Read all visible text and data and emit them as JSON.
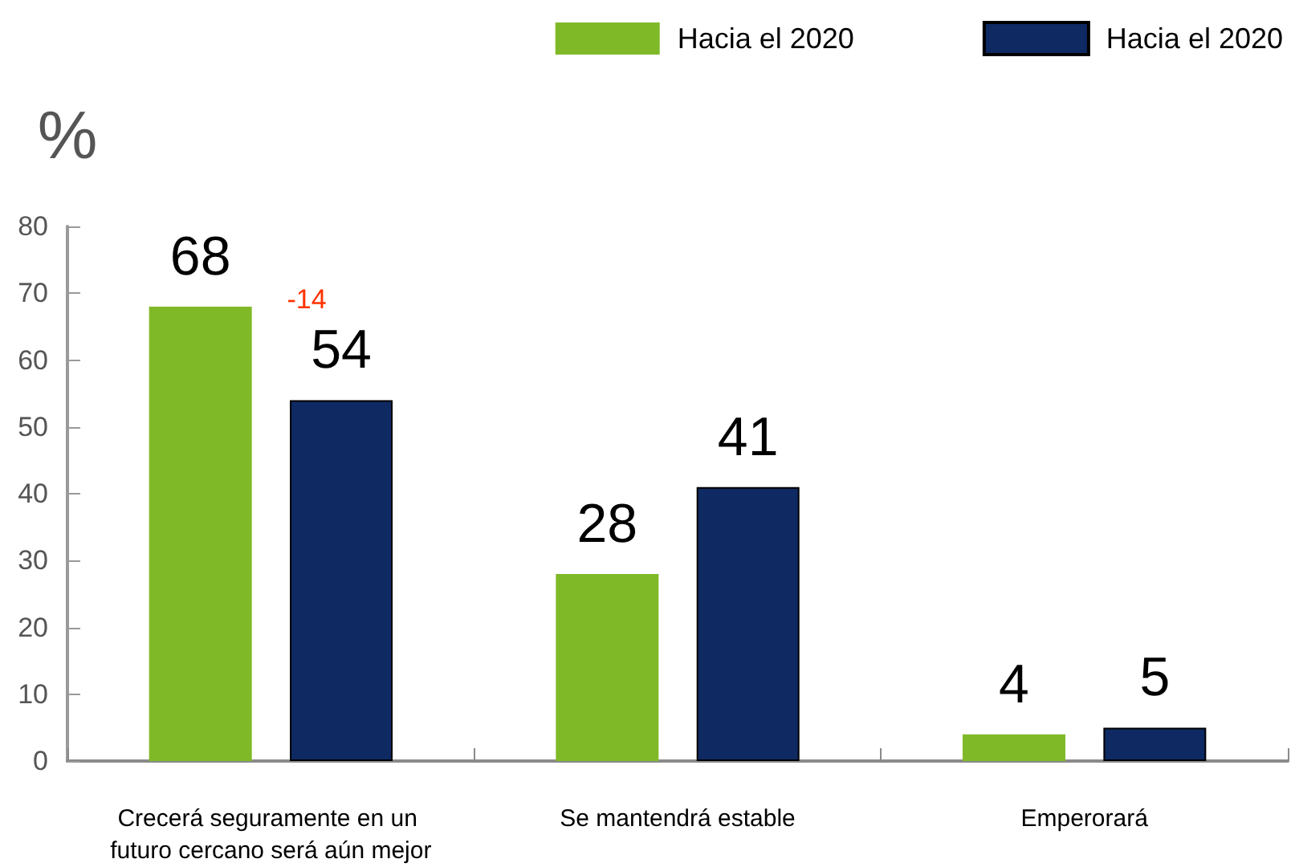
{
  "chart_data": {
    "type": "bar",
    "ylabel": "%",
    "categories": [
      "Crecerá seguramente en un futuro cercano será aún mejor",
      "Se mantendrá estable",
      "Emperorará"
    ],
    "series": [
      {
        "name": "Hacia el 2020",
        "color": "#80b928",
        "values": [
          68,
          28,
          4
        ]
      },
      {
        "name": "Hacia el 2020",
        "color": "#0f2a62",
        "values": [
          54,
          41,
          5
        ]
      }
    ],
    "ylim": [
      0,
      80
    ],
    "yticks": [
      0,
      10,
      20,
      30,
      40,
      50,
      60,
      70,
      80
    ],
    "grid": false,
    "legend": "top right",
    "data_labels": true,
    "annotations": [
      "-14"
    ]
  }
}
